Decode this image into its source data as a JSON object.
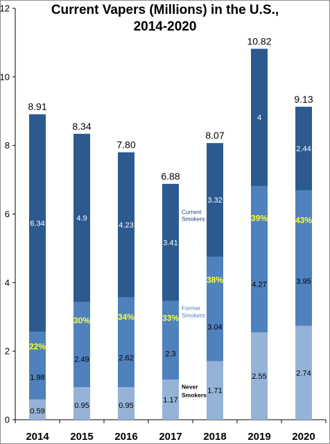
{
  "chart_data": {
    "type": "bar",
    "stacked": true,
    "title_lines": [
      "Current Vapers (Millions) in the U.S.,",
      "2014-2020"
    ],
    "categories": [
      "2014",
      "2015",
      "2016",
      "2017",
      "2018",
      "2019",
      "2020"
    ],
    "series": [
      {
        "key": "never",
        "color": "#95b3d7",
        "values": [
          0.59,
          0.95,
          0.95,
          1.17,
          1.71,
          2.55,
          2.74
        ],
        "labels": [
          "0.59",
          "0.95",
          "0.95",
          "1.17",
          "1.71",
          "2.55",
          "2.74"
        ],
        "label_color": "#000000"
      },
      {
        "key": "former",
        "color": "#4f81bd",
        "values": [
          1.98,
          2.49,
          2.62,
          2.3,
          3.04,
          4.27,
          3.95
        ],
        "labels": [
          "1.98",
          "2.49",
          "2.62",
          "2.3",
          "3.04",
          "4.27",
          "3.95"
        ],
        "label_color": "#000000"
      },
      {
        "key": "current",
        "color": "#2c5a8f",
        "values": [
          6.34,
          4.9,
          4.23,
          3.41,
          3.32,
          4,
          2.44
        ],
        "labels": [
          "6.34",
          "4.9",
          "4.23",
          "3.41",
          "3.32",
          "4",
          "2.44"
        ],
        "label_color": "#ffffff"
      }
    ],
    "totals": [
      "8.91",
      "8.34",
      "7.80",
      "6.88",
      "8.07",
      "10.82",
      "9.13"
    ],
    "former_share_pct": [
      "22%",
      "30%",
      "34%",
      "33%",
      "38%",
      "39%",
      "43%"
    ],
    "series_annotations": {
      "current": [
        "Current",
        "Smokers"
      ],
      "former": [
        "Former",
        "Smokers"
      ],
      "never": [
        "Never",
        "Smokers"
      ]
    },
    "ylim": [
      0,
      12
    ],
    "yticks": [
      "0",
      "2",
      "4",
      "6",
      "8",
      "10",
      "12"
    ],
    "grid": false,
    "legend": "none"
  }
}
